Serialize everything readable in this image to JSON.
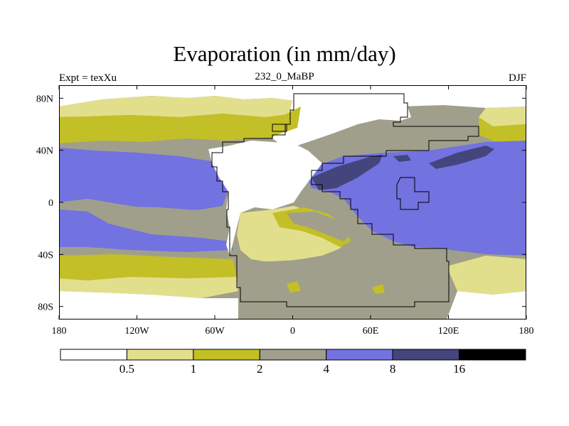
{
  "title": "Evaporation (in mm/day)",
  "subtitle_left": "Expt = texXu",
  "subtitle_center": "232_0_MaBP",
  "subtitle_right": "DJF",
  "x_ticks": [
    "180",
    "120W",
    "60W",
    "0",
    "60E",
    "120E",
    "180"
  ],
  "y_ticks": [
    "80N",
    "40N",
    "0",
    "40S",
    "80S"
  ],
  "colorbar": {
    "levels": [
      "0.5",
      "1",
      "2",
      "4",
      "8",
      "16"
    ],
    "colors": [
      "#ffffff",
      "#e2df8c",
      "#c3bf26",
      "#a09f8c",
      "#7272e0",
      "#45457e",
      "#000000"
    ]
  },
  "palette": {
    "white": "#ffffff",
    "pale_yellow": "#e2df8c",
    "olive": "#c3bf26",
    "gray": "#a09f8c",
    "blue": "#7272e0",
    "dark_blue": "#45457e"
  }
}
